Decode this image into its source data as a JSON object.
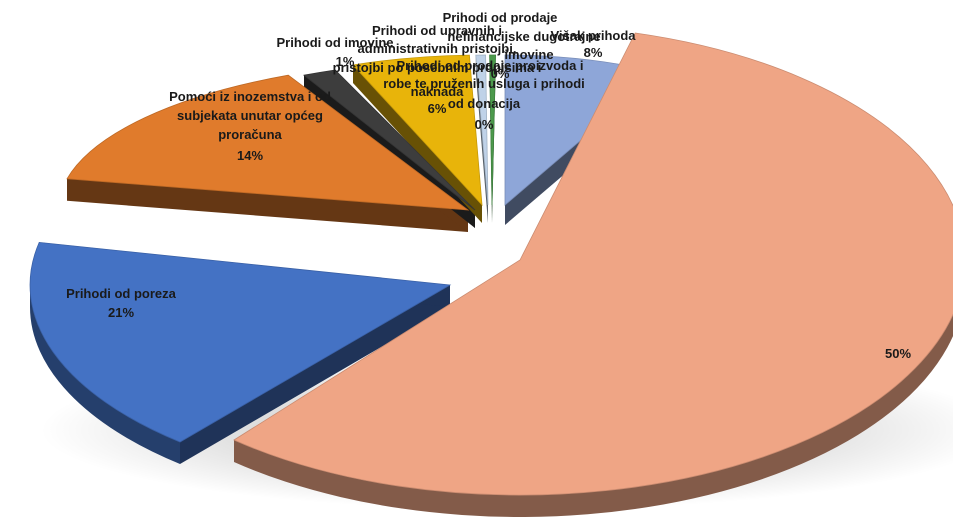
{
  "chart_data": {
    "type": "pie",
    "style": "3d-exploded",
    "title": "",
    "slices": [
      {
        "label": "Višak prihoda",
        "value": 8,
        "display": "8%",
        "color": "#8EA6D8"
      },
      {
        "label": "",
        "value": 50,
        "display": "50%",
        "color": "#EFA585"
      },
      {
        "label": "Prihodi od poreza",
        "value": 21,
        "display": "21%",
        "color": "#4472C4"
      },
      {
        "label": "Pomoći iz inozemstva i od subjekata unutar općeg proračuna",
        "value": 14,
        "display": "14%",
        "color": "#E07B2C"
      },
      {
        "label": "Prihodi od imovine",
        "value": 1,
        "display": "1%",
        "color": "#3D3D3D"
      },
      {
        "label": "Prihodi od upravnih i administrativnih pristojbi, pristojbi po posebnim propisima i naknada",
        "value": 6,
        "display": "6%",
        "color": "#E8B40A"
      },
      {
        "label": "Prihodi od prodaje proizvoda i robe te pruženih usluga i prihodi od donacija",
        "value": 0,
        "display": "0%",
        "color": "#BFD2E8"
      },
      {
        "label": "Prihodi od prodaje nefinancijske imovine",
        "value": 0,
        "display": "0%",
        "color": "#4C9A4C"
      }
    ],
    "text_labels": [
      {
        "text": "Prihodi od poreza"
      },
      {
        "text": "21%"
      },
      {
        "text": "Pomoći iz inozemstva i od"
      },
      {
        "text": "subjekata unutar općeg"
      },
      {
        "text": "proračuna"
      },
      {
        "text": "14%"
      },
      {
        "text": "50%"
      },
      {
        "text": "Višak prihoda"
      },
      {
        "text": "8%"
      },
      {
        "text": "Prihodi od imovine"
      },
      {
        "text": "1%"
      },
      {
        "text": "Prihodi od upravnih i"
      },
      {
        "text": "administrativnih pristojbi,"
      },
      {
        "text": "pristojbi po posebnim propisima i"
      },
      {
        "text": "naknada"
      },
      {
        "text": "6%"
      },
      {
        "text": "Prihodi od prodaje proizvoda i"
      },
      {
        "text": "robe te pruženih usluga i prihodi"
      },
      {
        "text": "od donacija"
      },
      {
        "text": "0%"
      },
      {
        "text": "Prihodi od prodaje"
      },
      {
        "text": "nefinancijske dugotrajne"
      },
      {
        "text": "imovine"
      },
      {
        "text": "0%"
      }
    ]
  }
}
